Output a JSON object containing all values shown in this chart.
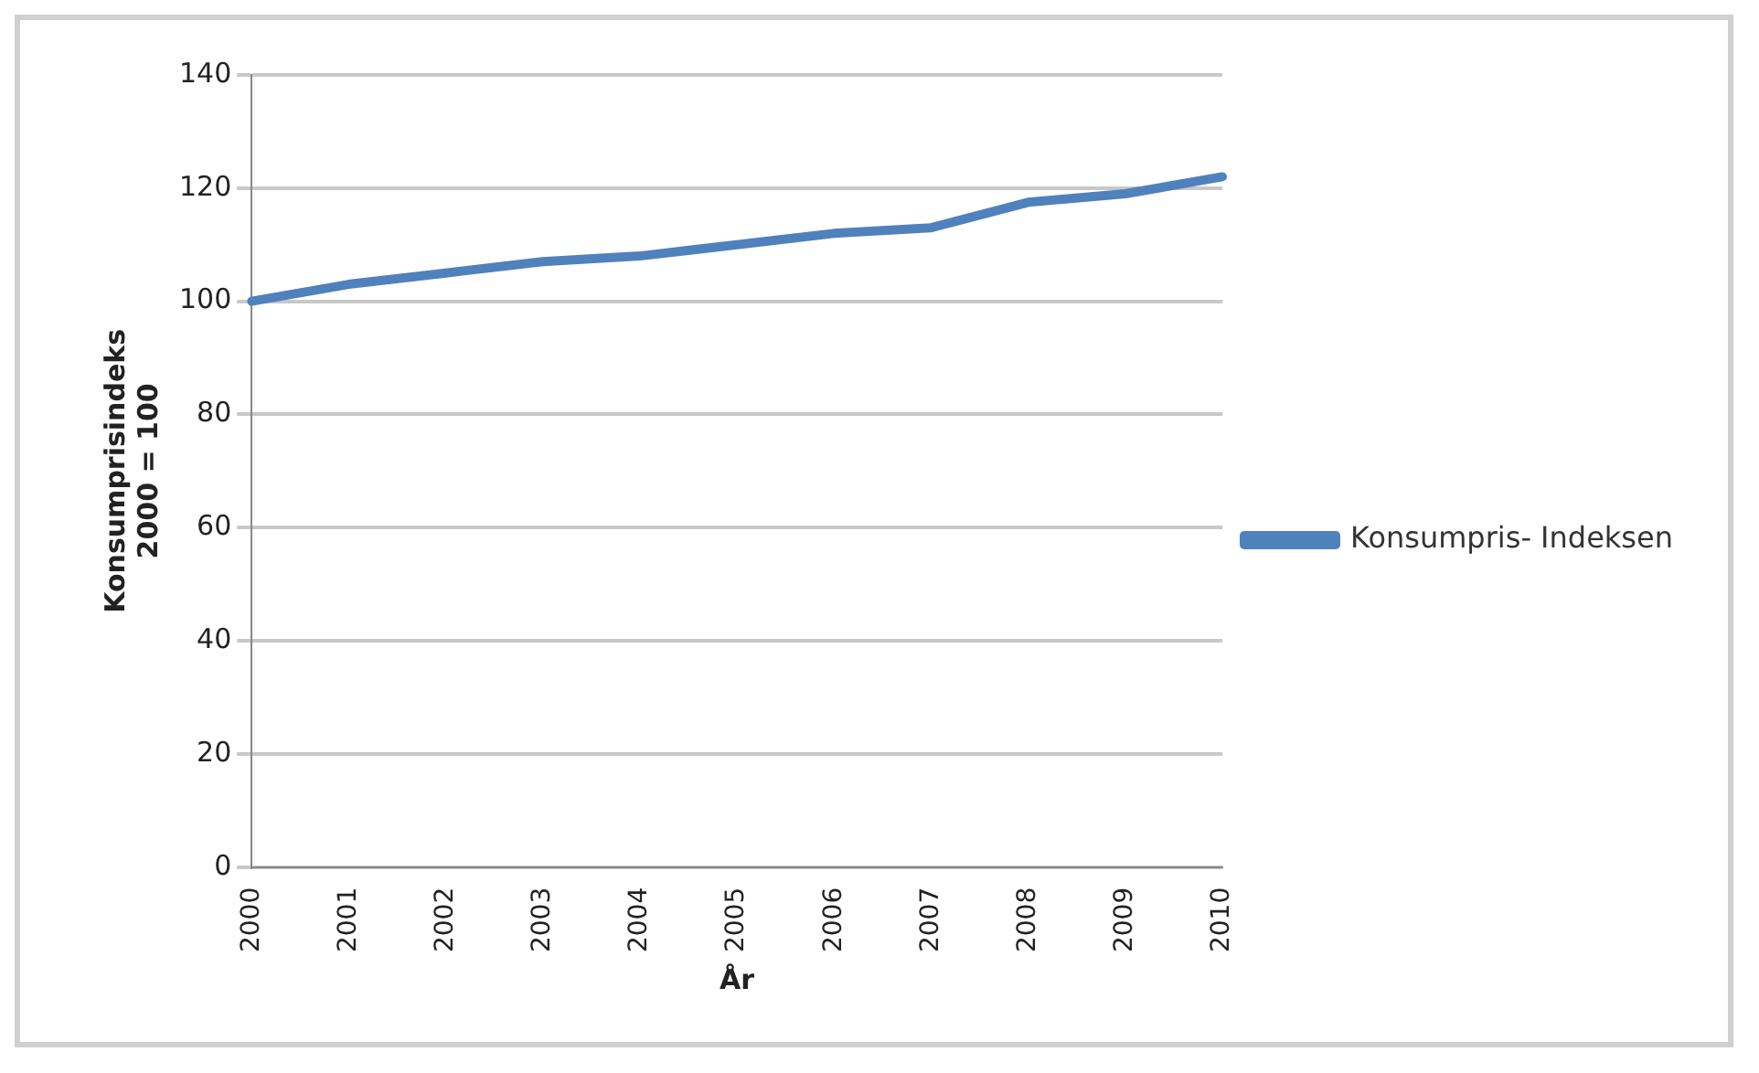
{
  "chart_data": {
    "type": "line",
    "xlabel": "År",
    "ylabel": "Konsumprisindeks\n2000 = 100",
    "categories": [
      "2000",
      "2001",
      "2002",
      "2003",
      "2004",
      "2005",
      "2006",
      "2007",
      "2008",
      "2009",
      "2010"
    ],
    "series": [
      {
        "name": "Konsumpris- Indeksen",
        "color": "#4f81bd",
        "values": [
          100,
          103,
          105,
          107,
          108,
          110,
          112,
          113,
          117.5,
          119,
          122
        ]
      }
    ],
    "ylim": [
      0,
      140
    ],
    "yticks": [
      0,
      20,
      40,
      60,
      80,
      100,
      120,
      140
    ],
    "grid": "y",
    "legend": "right",
    "marker": "none",
    "line_style": "solid"
  }
}
